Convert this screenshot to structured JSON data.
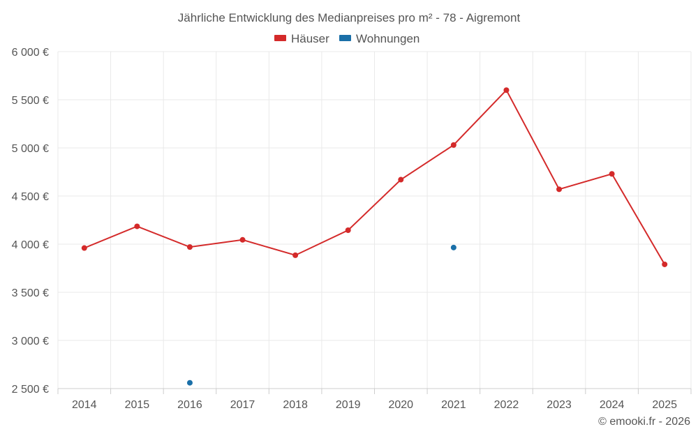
{
  "chart_data": {
    "type": "line",
    "title": "Jährliche Entwicklung des Medianpreises pro m² - 78 - Aigremont",
    "categories": [
      "2014",
      "2015",
      "2016",
      "2017",
      "2018",
      "2019",
      "2020",
      "2021",
      "2022",
      "2023",
      "2024",
      "2025"
    ],
    "series": [
      {
        "name": "Häuser",
        "color": "#d42a2a",
        "values": [
          3960,
          4185,
          3970,
          4045,
          3885,
          4145,
          4670,
          5030,
          5600,
          4570,
          4730,
          3790
        ]
      },
      {
        "name": "Wohnungen",
        "color": "#1a6fa8",
        "values": [
          null,
          null,
          2560,
          null,
          null,
          null,
          null,
          3965,
          null,
          null,
          null,
          null
        ]
      }
    ],
    "ylim": [
      2500,
      6000
    ],
    "yticks": [
      2500,
      3000,
      3500,
      4000,
      4500,
      5000,
      5500,
      6000
    ],
    "ytick_labels": [
      "2 500 €",
      "3 000 €",
      "3 500 €",
      "4 000 €",
      "4 500 €",
      "5 000 €",
      "5 500 €",
      "6 000 €"
    ],
    "legend_position": "top-center",
    "grid": true
  },
  "credit": "© emooki.fr - 2026"
}
